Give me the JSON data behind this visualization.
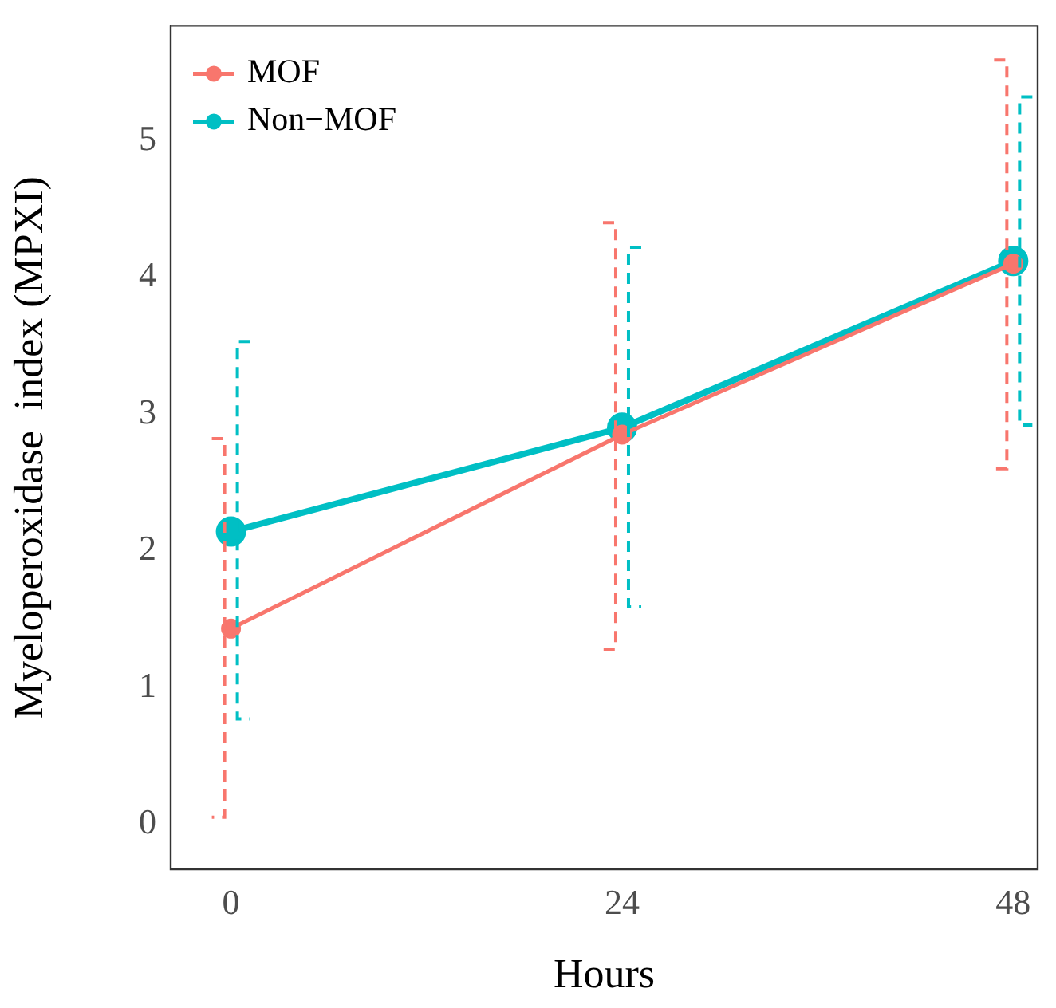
{
  "chart_data": {
    "type": "line",
    "xlabel": "Hours",
    "ylabel": "Myeloperoxidase  index (MPXI)",
    "x": [
      0,
      24,
      48
    ],
    "xlim": [
      -3.7,
      49.5
    ],
    "xticks": [
      0,
      24,
      48
    ],
    "ylim": [
      -0.33,
      5.84
    ],
    "yticks": [
      0,
      1,
      2,
      3,
      4,
      5
    ],
    "grid": false,
    "legend": "top left",
    "marker": "circle",
    "line_style": "solid",
    "series": [
      {
        "name": "MOF",
        "color": "#f8766d",
        "values": [
          1.43,
          2.85,
          4.1
        ],
        "errors": [
          [
            0.05,
            2.82
          ],
          [
            1.28,
            4.4
          ],
          [
            2.6,
            5.59
          ]
        ]
      },
      {
        "name": "Non−MOF",
        "color": "#00bfc4",
        "values": [
          2.14,
          2.9,
          4.12
        ],
        "errors": [
          [
            0.77,
            3.53
          ],
          [
            1.59,
            4.22
          ],
          [
            2.92,
            5.32
          ]
        ]
      }
    ]
  }
}
